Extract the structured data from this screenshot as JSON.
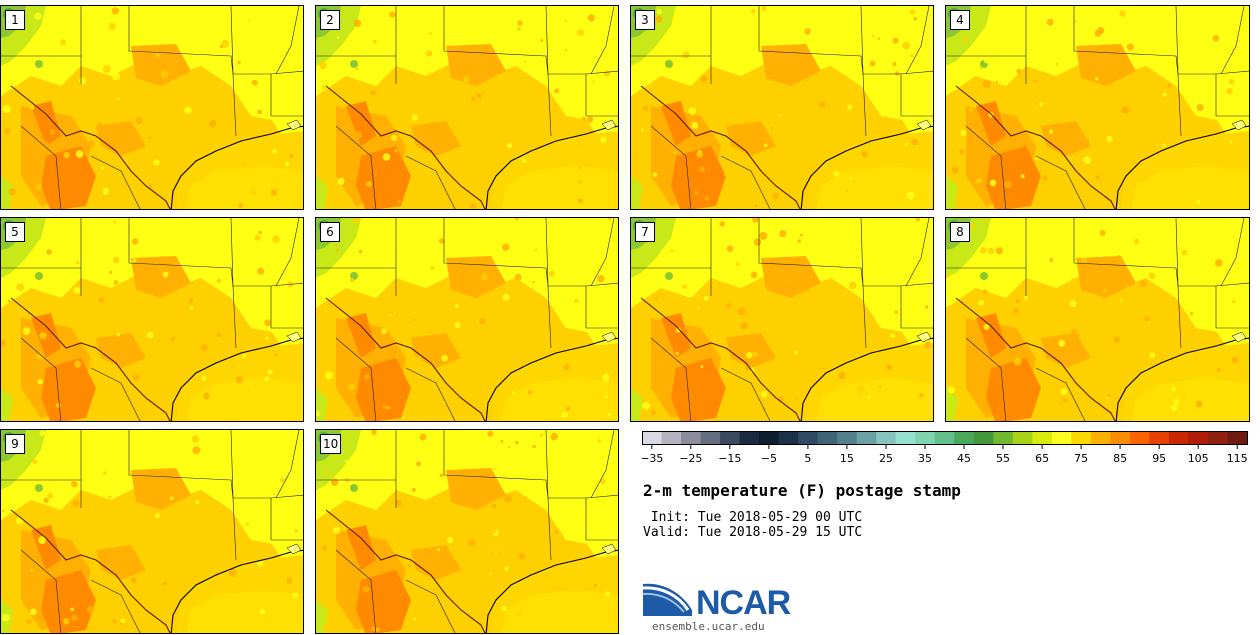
{
  "stamps": [
    {
      "label": "1"
    },
    {
      "label": "2"
    },
    {
      "label": "3"
    },
    {
      "label": "4"
    },
    {
      "label": "5"
    },
    {
      "label": "6"
    },
    {
      "label": "7"
    },
    {
      "label": "8"
    },
    {
      "label": "9"
    },
    {
      "label": "10"
    }
  ],
  "colorbar": {
    "tick_labels": [
      "−35",
      "−25",
      "−15",
      "−5",
      "5",
      "15",
      "25",
      "35",
      "45",
      "55",
      "65",
      "75",
      "85",
      "95",
      "105",
      "115"
    ],
    "colors": [
      "#d9d9e3",
      "#b4b4c0",
      "#8c8c9a",
      "#646e80",
      "#3c4a60",
      "#1a2a40",
      "#0e1e30",
      "#1c3048",
      "#2e4a64",
      "#3e6478",
      "#52808c",
      "#6aa0a6",
      "#86c4c0",
      "#96e0d0",
      "#80d4ae",
      "#64c08a",
      "#4aa85a",
      "#42983a",
      "#72b830",
      "#a8d418",
      "#d8ec10",
      "#fcfc20",
      "#fcd800",
      "#fcb000",
      "#fc8c00",
      "#fc6400",
      "#e84000",
      "#c82800",
      "#b01c08",
      "#902010",
      "#6e1c10"
    ]
  },
  "map_colors": {
    "base": "#ffd000",
    "light": "#ffff14",
    "orange": "#ffb000",
    "deep": "#ff8a00",
    "green1": "#c8e818",
    "green2": "#8cc830",
    "green3": "#4aa848",
    "border": "#222222"
  },
  "title": "2-m temperature (F) postage stamp",
  "init_line": " Init: Tue 2018-05-29 00 UTC",
  "valid_line": "Valid: Tue 2018-05-29 15 UTC",
  "logo": {
    "name": "NCAR",
    "url": "ensemble.ucar.edu"
  }
}
